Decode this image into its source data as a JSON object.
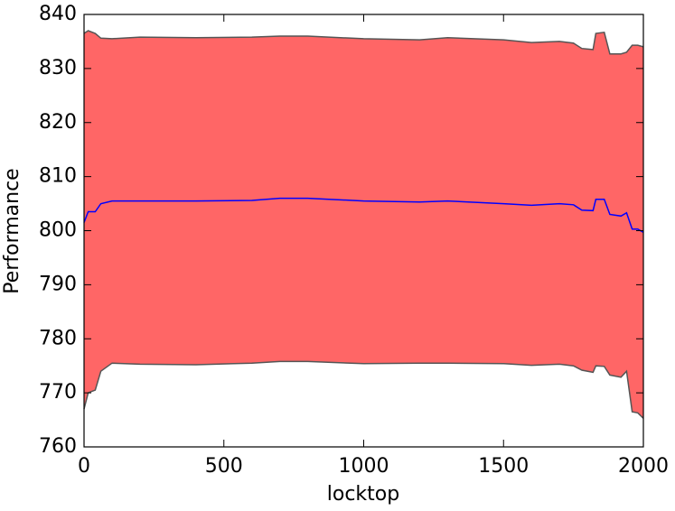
{
  "chart_data": {
    "type": "line",
    "xlabel": "locktop",
    "ylabel": "Performance",
    "x": [
      0,
      15,
      40,
      60,
      100,
      200,
      400,
      600,
      700,
      800,
      1000,
      1200,
      1300,
      1500,
      1600,
      1700,
      1750,
      1780,
      1820,
      1830,
      1860,
      1880,
      1920,
      1940,
      1960,
      1980,
      2000
    ],
    "series": [
      {
        "color": "#0000ff",
        "values": [
          801.5,
          803.5,
          803.5,
          805,
          805.5,
          805.5,
          805.5,
          805.6,
          806,
          806,
          805.5,
          805.3,
          805.5,
          805,
          804.7,
          805,
          804.8,
          803.8,
          803.7,
          805.8,
          805.8,
          803,
          802.7,
          803.3,
          800.3,
          800.3,
          799.7
        ]
      }
    ],
    "band": {
      "color": "#ff6666",
      "edgecolor": "#555555",
      "upper": [
        836.5,
        837,
        836.5,
        835.6,
        835.5,
        835.8,
        835.7,
        835.8,
        836,
        836,
        835.5,
        835.3,
        835.7,
        835.3,
        834.8,
        835,
        834.7,
        833.7,
        833.5,
        836.5,
        836.7,
        832.7,
        832.7,
        833,
        834.3,
        834.3,
        834
      ],
      "lower": [
        767,
        770,
        770.5,
        774,
        775.5,
        775.3,
        775.2,
        775.5,
        775.8,
        775.8,
        775.4,
        775.5,
        775.5,
        775.4,
        775.1,
        775.3,
        775,
        774.2,
        773.8,
        775,
        774.9,
        773.3,
        772.9,
        774,
        766.5,
        766.3,
        765.3
      ]
    },
    "xlim": [
      0,
      2000
    ],
    "xticks": [
      0,
      500,
      1000,
      1500,
      2000
    ],
    "ylim": [
      760,
      840
    ],
    "yticks": [
      760,
      770,
      780,
      790,
      800,
      810,
      820,
      830,
      840
    ]
  }
}
